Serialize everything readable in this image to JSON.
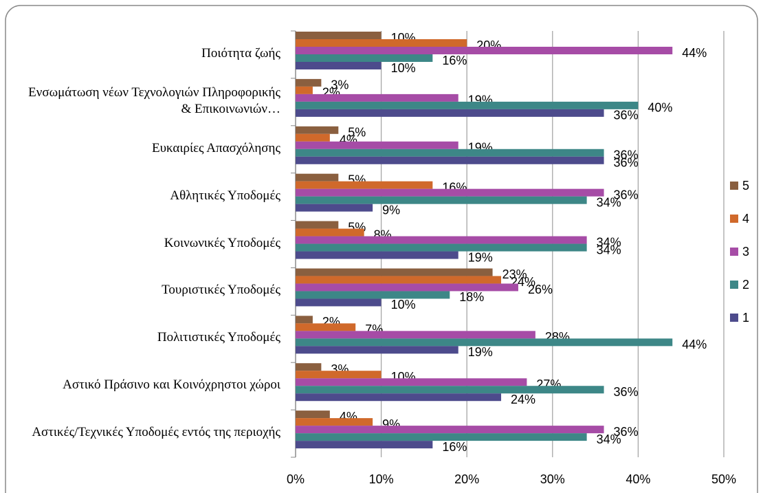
{
  "chart_data": {
    "type": "bar",
    "orientation": "horizontal",
    "categories": [
      "Ποιότητα ζωής",
      "Ενσωμάτωση νέων Τεχνολογιών Πληροφορικής & Επικοινωνιών…",
      "Ευκαιρίες Απασχόλησης",
      "Αθλητικές Υποδομές",
      "Κοινωνικές Υποδομές",
      "Τουριστικές Υποδομές",
      "Πολιτιστικές Υποδομές",
      "Αστικό Πράσινο και Κοινόχρηστοι χώροι",
      "Αστικές/Τεχνικές Υποδομές εντός της περιοχής"
    ],
    "series": [
      {
        "name": "5",
        "color": "#8a5f3f",
        "values": [
          10,
          3,
          5,
          5,
          5,
          23,
          2,
          3,
          4
        ],
        "value_labels": [
          "10%",
          "3%",
          "5%",
          "5%",
          "5%",
          "23%",
          "2%",
          "3%",
          "4%"
        ]
      },
      {
        "name": "4",
        "color": "#d0692b",
        "values": [
          20,
          2,
          4,
          16,
          8,
          24,
          7,
          10,
          9
        ],
        "value_labels": [
          "20%",
          "2%",
          "4%",
          "16%",
          "8%",
          "24%",
          "7%",
          "10%",
          "9%"
        ]
      },
      {
        "name": "3",
        "color": "#a64ca6",
        "values": [
          44,
          19,
          19,
          36,
          34,
          26,
          28,
          27,
          36
        ],
        "value_labels": [
          "44%",
          "19%",
          "19%",
          "36%",
          "34%",
          "26%",
          "28%",
          "27%",
          "36%"
        ]
      },
      {
        "name": "2",
        "color": "#3d8787",
        "values": [
          16,
          40,
          36,
          34,
          34,
          18,
          44,
          36,
          34
        ],
        "value_labels": [
          "16%",
          "40%",
          "36%",
          "34%",
          "34%",
          "18%",
          "44%",
          "36%",
          "34%"
        ]
      },
      {
        "name": "1",
        "color": "#4d4b8c",
        "values": [
          10,
          36,
          36,
          9,
          19,
          10,
          19,
          24,
          16
        ],
        "value_labels": [
          "10%",
          "36%",
          "36%",
          "9%",
          "19%",
          "10%",
          "19%",
          "24%",
          "16%"
        ]
      }
    ],
    "xlim": [
      0,
      50
    ],
    "xticks": [
      {
        "value": 0,
        "label": "0%"
      },
      {
        "value": 10,
        "label": "10%"
      },
      {
        "value": 20,
        "label": "20%"
      },
      {
        "value": 30,
        "label": "30%"
      },
      {
        "value": 40,
        "label": "40%"
      },
      {
        "value": 50,
        "label": "50%"
      }
    ],
    "grid": true,
    "legend": "right"
  }
}
